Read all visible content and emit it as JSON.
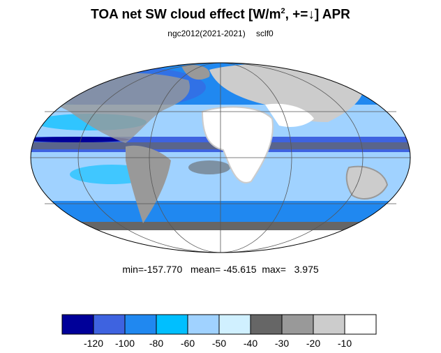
{
  "title": {
    "main": "TOA net SW cloud effect [W/m",
    "superscript": "2",
    "after_sup": ", +=↓]  APR"
  },
  "subtitle": {
    "left": "ngc2012(2021-2021)",
    "right": "sclf0"
  },
  "stats": {
    "text": "min=-157.770   mean= -45.615  max=   3.975"
  },
  "map": {
    "projection": "Mollweide",
    "variable": "TOA net SW cloud effect",
    "month": "APR"
  },
  "colorbar": {
    "colors": [
      "#000099",
      "#3e63e0",
      "#2088f0",
      "#00bfff",
      "#a0d2ff",
      "#d0f0ff",
      "#666666",
      "#999999",
      "#cccccc",
      "#ffffff"
    ],
    "tick_labels": [
      "-120",
      "-100",
      "-80",
      "-60",
      "-50",
      "-40",
      "-30",
      "-20",
      "-10"
    ]
  }
}
